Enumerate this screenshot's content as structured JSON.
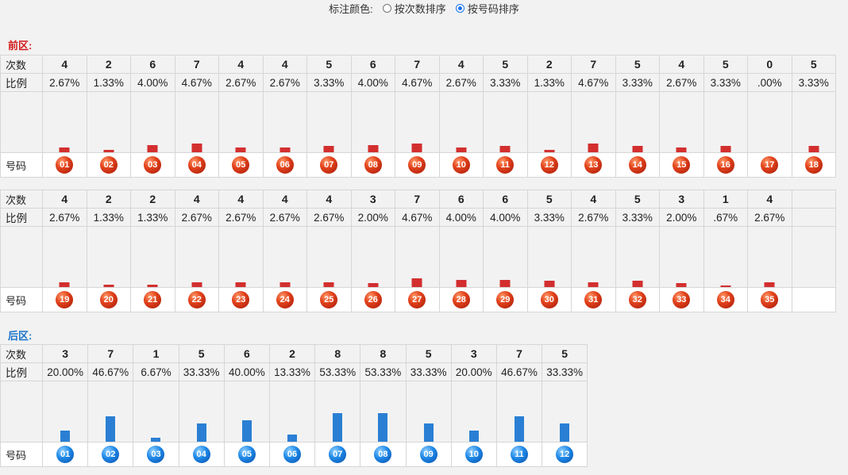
{
  "header": {
    "label": "标注颜色:",
    "options": [
      {
        "label": "按次数排序",
        "checked": false
      },
      {
        "label": "按号码排序",
        "checked": true
      }
    ]
  },
  "front": {
    "title": "前区:",
    "row_labels": {
      "count": "次数",
      "ratio": "比例",
      "number": "号码"
    },
    "bar_color": "#d32f2f",
    "rows": [
      {
        "counts": [
          "4",
          "2",
          "6",
          "7",
          "4",
          "4",
          "5",
          "6",
          "7",
          "4",
          "5",
          "2",
          "7",
          "5",
          "4",
          "5",
          "0",
          "5"
        ],
        "ratios": [
          "2.67%",
          "1.33%",
          "4.00%",
          "4.67%",
          "2.67%",
          "2.67%",
          "3.33%",
          "4.00%",
          "4.67%",
          "2.67%",
          "3.33%",
          "1.33%",
          "4.67%",
          "3.33%",
          "2.67%",
          "3.33%",
          ".00%",
          "3.33%"
        ],
        "numbers": [
          "01",
          "02",
          "03",
          "04",
          "05",
          "06",
          "07",
          "08",
          "09",
          "10",
          "11",
          "12",
          "13",
          "14",
          "15",
          "16",
          "17",
          "18"
        ]
      },
      {
        "counts": [
          "4",
          "2",
          "2",
          "4",
          "4",
          "4",
          "4",
          "3",
          "7",
          "6",
          "6",
          "5",
          "4",
          "5",
          "3",
          "1",
          "4"
        ],
        "ratios": [
          "2.67%",
          "1.33%",
          "1.33%",
          "2.67%",
          "2.67%",
          "2.67%",
          "2.67%",
          "2.00%",
          "4.67%",
          "4.00%",
          "4.00%",
          "3.33%",
          "2.67%",
          "3.33%",
          "2.00%",
          ".67%",
          "2.67%"
        ],
        "numbers": [
          "19",
          "20",
          "21",
          "22",
          "23",
          "24",
          "25",
          "26",
          "27",
          "28",
          "29",
          "30",
          "31",
          "32",
          "33",
          "34",
          "35"
        ]
      }
    ]
  },
  "back": {
    "title": "后区:",
    "row_labels": {
      "count": "次数",
      "ratio": "比例",
      "number": "号码"
    },
    "bar_color": "#2a7fd4",
    "counts": [
      "3",
      "7",
      "1",
      "5",
      "6",
      "2",
      "8",
      "8",
      "5",
      "3",
      "7",
      "5"
    ],
    "ratios": [
      "20.00%",
      "46.67%",
      "6.67%",
      "33.33%",
      "40.00%",
      "13.33%",
      "53.33%",
      "53.33%",
      "33.33%",
      "20.00%",
      "46.67%",
      "33.33%"
    ],
    "numbers": [
      "01",
      "02",
      "03",
      "04",
      "05",
      "06",
      "07",
      "08",
      "09",
      "10",
      "11",
      "12"
    ]
  }
}
